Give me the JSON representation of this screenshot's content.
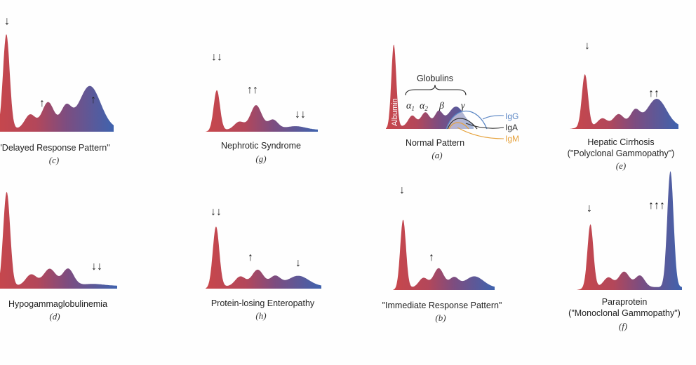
{
  "colors": {
    "albumin": "#c8474b",
    "gamma": "#3f63ae",
    "igg": "#5b86c4",
    "iga": "#333333",
    "igm": "#e6a23c"
  },
  "patterns": [
    {
      "id": "c",
      "title": "\"Delayed Response Pattern\"",
      "letter": "(c)",
      "arrows": [
        "↓",
        "↑",
        "↑"
      ],
      "levels": {
        "albumin": 1.0,
        "a1": 0.15,
        "a2": 0.28,
        "beta": 0.22,
        "gamma": 0.45
      }
    },
    {
      "id": "g",
      "title": "Nephrotic Syndrome",
      "letter": "(g)",
      "arrows": [
        "↓↓",
        "↑↑",
        "↓↓"
      ],
      "levels": {
        "albumin": 0.65,
        "a1": 0.13,
        "a2": 0.4,
        "beta": 0.16,
        "gamma": 0.06
      }
    },
    {
      "id": "a",
      "title": "Normal Pattern",
      "letter": "(a)",
      "arrows": [],
      "levels": {
        "albumin": 1.0,
        "a1": 0.13,
        "a2": 0.17,
        "beta": 0.17,
        "gamma": 0.24
      }
    },
    {
      "id": "e",
      "title": "Hepatic Cirrhosis",
      "subtitle": "(\"Polyclonal Gammopathy\")",
      "letter": "(e)",
      "arrows": [
        "↓",
        "↑↑"
      ],
      "levels": {
        "albumin": 0.75,
        "a1": 0.12,
        "a2": 0.18,
        "beta": 0.22,
        "gamma": 0.4
      }
    },
    {
      "id": "d",
      "title": "Hypogammaglobulinemia",
      "letter": "(d)",
      "arrows": [
        "↓↓"
      ],
      "levels": {
        "albumin": 1.0,
        "a1": 0.12,
        "a2": 0.18,
        "beta": 0.18,
        "gamma": 0.02
      }
    },
    {
      "id": "h",
      "title": "Protein-losing Enteropathy",
      "letter": "(h)",
      "arrows": [
        "↓↓",
        "↑",
        "↓"
      ],
      "levels": {
        "albumin": 0.8,
        "a1": 0.13,
        "a2": 0.22,
        "beta": 0.13,
        "gamma": 0.14
      }
    },
    {
      "id": "b",
      "title": "\"Immediate Response Pattern\"",
      "letter": "(b)",
      "arrows": [
        "↓",
        "↑"
      ],
      "levels": {
        "albumin": 0.85,
        "a1": 0.12,
        "a2": 0.24,
        "beta": 0.12,
        "gamma": 0.14
      }
    },
    {
      "id": "f",
      "title": "Paraprotein",
      "subtitle": "(\"Monoclonal Gammopathy\")",
      "letter": "(f)",
      "arrows": [
        "↓",
        "↑↑↑"
      ],
      "levels": {
        "albumin": 0.65,
        "a1": 0.1,
        "a2": 0.16,
        "beta": 0.12,
        "gamma": 1.2
      }
    }
  ],
  "normal_labels": {
    "globulins": "Globulins",
    "albumin": "Albumin",
    "alpha1": "α",
    "alpha1_sub": "1",
    "alpha2": "α",
    "alpha2_sub": "2",
    "beta": "β",
    "gamma": "γ",
    "igg": "IgG",
    "iga": "IgA",
    "igm": "IgM"
  }
}
